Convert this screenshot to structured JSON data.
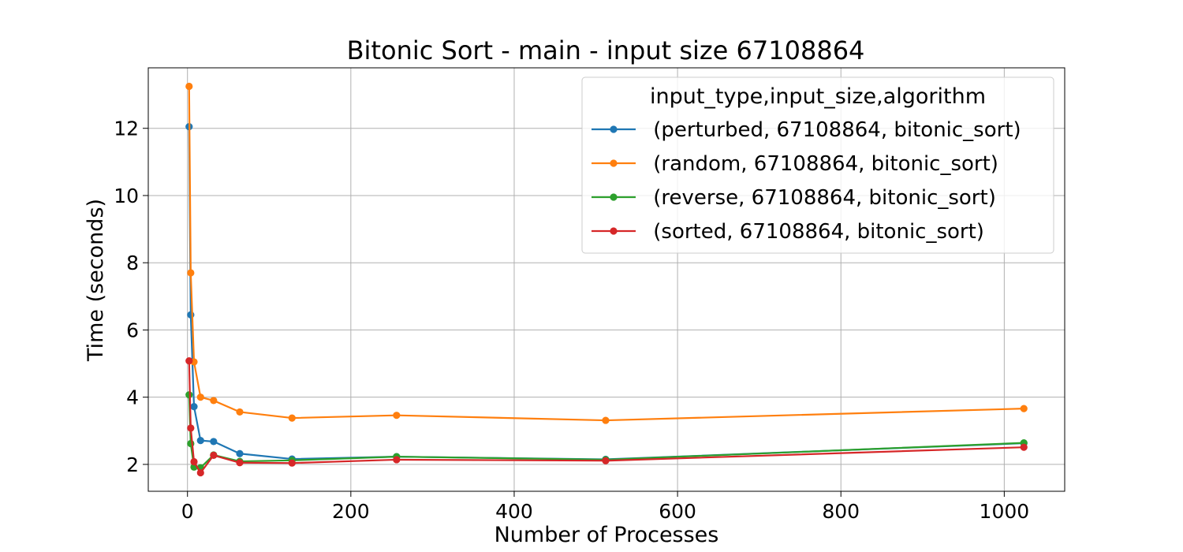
{
  "chart_data": {
    "type": "line",
    "title": "Bitonic Sort - main - input size 67108864",
    "xlabel": "Number of Processes",
    "ylabel": "Time (seconds)",
    "xlim": [
      -48,
      1074
    ],
    "ylim": [
      1.2,
      13.8
    ],
    "x_ticks": [
      0,
      200,
      400,
      600,
      800,
      1000
    ],
    "y_ticks": [
      2,
      4,
      6,
      8,
      10,
      12
    ],
    "grid": true,
    "legend": {
      "title": "input_type,input_size,algorithm",
      "placement": "top-right"
    },
    "x": [
      2,
      4,
      8,
      16,
      32,
      64,
      128,
      256,
      512,
      1024
    ],
    "series": [
      {
        "name": " (perturbed, 67108864, bitonic_sort)",
        "color": "#1f77b4",
        "values": [
          12.05,
          6.45,
          3.72,
          2.71,
          2.68,
          2.32,
          2.16,
          2.23,
          2.15,
          2.63
        ]
      },
      {
        "name": " (random, 67108864, bitonic_sort)",
        "color": "#ff7f0e",
        "values": [
          13.25,
          7.7,
          5.05,
          4.0,
          3.9,
          3.56,
          3.38,
          3.46,
          3.31,
          3.66
        ]
      },
      {
        "name": " (reverse, 67108864, bitonic_sort)",
        "color": "#2ca02c",
        "values": [
          4.07,
          2.62,
          1.92,
          1.9,
          2.28,
          2.09,
          2.12,
          2.23,
          2.14,
          2.64
        ]
      },
      {
        "name": " (sorted, 67108864, bitonic_sort)",
        "color": "#d62728",
        "values": [
          5.08,
          3.08,
          2.08,
          1.75,
          2.27,
          2.05,
          2.04,
          2.14,
          2.11,
          2.51
        ]
      }
    ]
  }
}
